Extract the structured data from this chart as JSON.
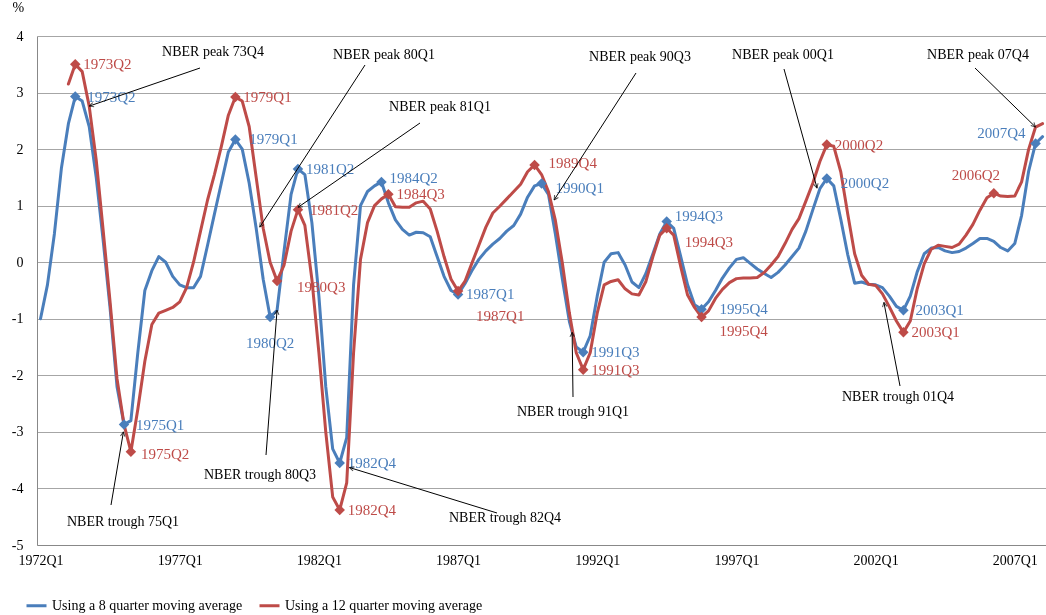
{
  "chart_data": {
    "type": "line",
    "ylabel": "%",
    "x": [
      "1972-01",
      "1972-04",
      "1972-07",
      "1972-10",
      "1973-01",
      "1973-04",
      "1973-07",
      "1973-10",
      "1974-01",
      "1974-04",
      "1974-07",
      "1974-10",
      "1975-01",
      "1975-04",
      "1975-07",
      "1975-10",
      "1976-01",
      "1976-04",
      "1976-07",
      "1976-10",
      "1977-01",
      "1977-04",
      "1977-07",
      "1977-10",
      "1978-01",
      "1978-04",
      "1978-07",
      "1978-10",
      "1979-01",
      "1979-04",
      "1979-07",
      "1979-10",
      "1980-01",
      "1980-04",
      "1980-07",
      "1980-10",
      "1981-01",
      "1981-04",
      "1981-07",
      "1981-10",
      "1982-01",
      "1982-04",
      "1982-07",
      "1982-10",
      "1983-01",
      "1983-04",
      "1983-07",
      "1983-10",
      "1984-01",
      "1984-04",
      "1984-07",
      "1984-10",
      "1985-01",
      "1985-04",
      "1985-07",
      "1985-10",
      "1986-01",
      "1986-04",
      "1986-07",
      "1986-10",
      "1987-01",
      "1987-04",
      "1987-07",
      "1987-10",
      "1988-01",
      "1988-04",
      "1988-07",
      "1988-10",
      "1989-01",
      "1989-04",
      "1989-07",
      "1989-10",
      "1990-01",
      "1990-04",
      "1990-07",
      "1990-10",
      "1991-01",
      "1991-04",
      "1991-07",
      "1991-10",
      "1992-01",
      "1992-04",
      "1992-07",
      "1992-10",
      "1993-01",
      "1993-04",
      "1993-07",
      "1993-10",
      "1994-01",
      "1994-04",
      "1994-07",
      "1994-10",
      "1995-01",
      "1995-04",
      "1995-07",
      "1995-10",
      "1996-01",
      "1996-04",
      "1996-07",
      "1996-10",
      "1997-01",
      "1997-04",
      "1997-07",
      "1997-10",
      "1998-01",
      "1998-04",
      "1998-07",
      "1998-10",
      "1999-01",
      "1999-04",
      "1999-07",
      "1999-10",
      "2000-01",
      "2000-04",
      "2000-07",
      "2000-10",
      "2001-01",
      "2001-04",
      "2001-07",
      "2001-10",
      "2002-01",
      "2002-04",
      "2002-07",
      "2002-10",
      "2003-01",
      "2003-04",
      "2003-07",
      "2003-10",
      "2004-01",
      "2004-04",
      "2004-07",
      "2004-10",
      "2005-01",
      "2005-04",
      "2005-07",
      "2005-10",
      "2006-01",
      "2006-04",
      "2006-07",
      "2006-10",
      "2007-01",
      "2007-04",
      "2007-07",
      "2007-10",
      "2008-01"
    ],
    "series": [
      {
        "name": "Using a 8 quarter moving average",
        "color": "#4a7ebb",
        "values": [
          -1.0,
          -0.4,
          0.5,
          1.66,
          2.45,
          2.93,
          2.85,
          2.4,
          1.5,
          0.4,
          -0.8,
          -2.2,
          -2.87,
          -2.8,
          -1.6,
          -0.5,
          -0.15,
          0.1,
          0.0,
          -0.25,
          -0.4,
          -0.45,
          -0.45,
          -0.25,
          0.3,
          0.85,
          1.4,
          1.95,
          2.17,
          2.0,
          1.4,
          0.6,
          -0.3,
          -0.97,
          -0.85,
          0.2,
          1.2,
          1.65,
          1.55,
          0.7,
          -0.6,
          -2.2,
          -3.3,
          -3.55,
          -3.1,
          -0.4,
          1.0,
          1.25,
          1.35,
          1.42,
          1.05,
          0.75,
          0.58,
          0.48,
          0.53,
          0.52,
          0.45,
          0.1,
          -0.25,
          -0.5,
          -0.57,
          -0.38,
          -0.15,
          0.05,
          0.2,
          0.32,
          0.42,
          0.55,
          0.65,
          0.85,
          1.15,
          1.35,
          1.39,
          1.2,
          0.5,
          -0.3,
          -1.05,
          -1.5,
          -1.59,
          -1.3,
          -0.6,
          0.0,
          0.15,
          0.17,
          -0.05,
          -0.35,
          -0.45,
          -0.2,
          0.15,
          0.5,
          0.72,
          0.6,
          0.1,
          -0.4,
          -0.75,
          -0.83,
          -0.7,
          -0.5,
          -0.28,
          -0.1,
          0.05,
          0.08,
          -0.02,
          -0.12,
          -0.2,
          -0.27,
          -0.18,
          -0.05,
          0.1,
          0.25,
          0.55,
          0.93,
          1.3,
          1.48,
          1.35,
          0.76,
          0.13,
          -0.37,
          -0.35,
          -0.39,
          -0.4,
          -0.45,
          -0.6,
          -0.78,
          -0.85,
          -0.6,
          -0.17,
          0.15,
          0.25,
          0.26,
          0.2,
          0.17,
          0.19,
          0.25,
          0.33,
          0.42,
          0.42,
          0.37,
          0.26,
          0.2,
          0.33,
          0.83,
          1.6,
          2.1,
          2.22
        ]
      },
      {
        "name": "Using a 12 quarter moving average",
        "color": "#be4b48",
        "values": [
          null,
          null,
          null,
          null,
          3.15,
          3.5,
          3.37,
          2.76,
          1.81,
          0.58,
          -0.69,
          -2.06,
          -2.87,
          -3.35,
          -2.6,
          -1.75,
          -1.1,
          -0.9,
          -0.85,
          -0.8,
          -0.7,
          -0.45,
          0.0,
          0.55,
          1.1,
          1.55,
          2.05,
          2.6,
          2.92,
          2.85,
          2.4,
          1.5,
          0.6,
          0.0,
          -0.33,
          -0.05,
          0.55,
          0.93,
          0.65,
          -0.3,
          -1.6,
          -3.0,
          -4.15,
          -4.38,
          -3.9,
          -1.6,
          0.05,
          0.7,
          1.0,
          1.12,
          1.2,
          0.98,
          0.97,
          0.97,
          1.05,
          1.08,
          0.94,
          0.55,
          0.1,
          -0.3,
          -0.51,
          -0.34,
          -0.02,
          0.3,
          0.62,
          0.87,
          0.99,
          1.12,
          1.25,
          1.38,
          1.6,
          1.72,
          1.55,
          1.25,
          0.74,
          -0.02,
          -0.9,
          -1.6,
          -1.9,
          -1.6,
          -0.9,
          -0.4,
          -0.34,
          -0.31,
          -0.47,
          -0.56,
          -0.58,
          -0.34,
          0.1,
          0.48,
          0.6,
          0.48,
          -0.08,
          -0.58,
          -0.8,
          -0.97,
          -0.86,
          -0.64,
          -0.48,
          -0.36,
          -0.29,
          -0.28,
          -0.28,
          -0.27,
          -0.18,
          -0.05,
          0.1,
          0.33,
          0.58,
          0.77,
          1.08,
          1.4,
          1.78,
          2.08,
          2.05,
          1.6,
          0.85,
          0.15,
          -0.23,
          -0.39,
          -0.41,
          -0.56,
          -0.79,
          -1.04,
          -1.24,
          -1.04,
          -0.47,
          -0.03,
          0.23,
          0.3,
          0.28,
          0.26,
          0.32,
          0.48,
          0.67,
          0.92,
          1.14,
          1.22,
          1.17,
          1.16,
          1.17,
          1.42,
          1.99,
          2.39,
          2.45
        ]
      },
      {
        "type": "scatter",
        "marker": "diamond",
        "color": "#4a7ebb",
        "x": [
          "1973-04",
          "1975-01",
          "1979-01",
          "1980-04",
          "1981-04",
          "1982-10",
          "1984-04",
          "1987-01",
          "1990-01",
          "1991-07",
          "1994-07",
          "1995-10",
          "2000-04",
          "2003-01",
          "2007-10"
        ],
        "values": [
          2.93,
          -2.87,
          2.17,
          -0.97,
          1.65,
          -3.55,
          1.42,
          -0.57,
          1.39,
          -1.59,
          0.72,
          -0.83,
          1.48,
          -0.85,
          2.1
        ],
        "value_labels": [
          "1973Q2",
          "1975Q1",
          "1979Q1",
          "1980Q2",
          "1981Q2",
          "1982Q4",
          "1984Q2",
          "1987Q1",
          "1990Q1",
          "1991Q3",
          "1994Q3",
          "1995Q4",
          "2000Q2",
          "2003Q1",
          "2007Q4"
        ]
      },
      {
        "type": "scatter",
        "marker": "diamond",
        "color": "#be4b48",
        "x": [
          "1973-04",
          "1975-04",
          "1979-01",
          "1980-07",
          "1981-04",
          "1982-10",
          "1984-07",
          "1987-01",
          "1989-10",
          "1991-07",
          "1994-07",
          "1995-10",
          "2000-04",
          "2003-01",
          "2006-04"
        ],
        "values": [
          3.5,
          -3.35,
          2.92,
          -0.33,
          0.93,
          -4.38,
          1.2,
          -0.51,
          1.72,
          -1.9,
          0.6,
          -0.97,
          2.08,
          -1.24,
          1.22
        ],
        "value_labels": [
          "1973Q2",
          "1975Q2",
          "1979Q1",
          "1980Q3",
          "1981Q2",
          "1982Q4",
          "1984Q3",
          "1987Q1",
          "1989Q4",
          "1991Q3",
          "1994Q3",
          "1995Q4",
          "2000Q2",
          "2003Q1",
          "2006Q2"
        ]
      }
    ],
    "xlim": [
      "1971-11-16",
      "2008-02-15"
    ],
    "ylim": [
      -5,
      4
    ],
    "xticks": [
      {
        "value": "1972-01",
        "label": "1972Q1"
      },
      {
        "value": "1977-01",
        "label": "1977Q1"
      },
      {
        "value": "1982-01",
        "label": "1982Q1"
      },
      {
        "value": "1987-01",
        "label": "1987Q1"
      },
      {
        "value": "1992-01",
        "label": "1992Q1"
      },
      {
        "value": "1997-01",
        "label": "1997Q1"
      },
      {
        "value": "2002-01",
        "label": "2002Q1"
      },
      {
        "value": "2007-01",
        "label": "2007Q1"
      }
    ],
    "yticks": [
      -5,
      -4,
      -3,
      -2,
      -1,
      0,
      1,
      2,
      3,
      4
    ],
    "grid": "y",
    "legend": "bottom",
    "line_style": "solid",
    "annotations": [
      {
        "text": "NBER peak 73Q4",
        "x": "1973-10",
        "y": 2.76
      },
      {
        "text": "NBER trough 75Q1",
        "x": "1974-12-24",
        "y": -3.0
      },
      {
        "text": "NBER peak 80Q1",
        "x": "1979-11-16",
        "y": 0.62
      },
      {
        "text": "NBER peak 81Q1",
        "x": "1981-04-01",
        "y": 0.97
      },
      {
        "text": "NBER trough 80Q3",
        "x": "1980-07",
        "y": -0.85
      },
      {
        "text": "NBER trough 82Q4",
        "x": "1983-02-06",
        "y": -3.63
      },
      {
        "text": "NBER peak 90Q3",
        "x": "1990-06-14",
        "y": 1.1
      },
      {
        "text": "NBER trough 91Q1",
        "x": "1991-02-06",
        "y": -1.24
      },
      {
        "text": "NBER peak 00Q1",
        "x": "1999-11-25",
        "y": 1.31
      },
      {
        "text": "NBER trough 01Q4",
        "x": "2002-04-20",
        "y": -0.71
      },
      {
        "text": "NBER peak 07Q4",
        "x": "2007-10",
        "y": 2.39
      }
    ]
  }
}
